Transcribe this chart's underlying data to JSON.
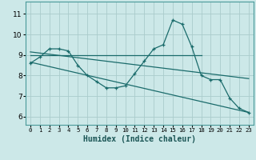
{
  "xlabel": "Humidex (Indice chaleur)",
  "bg_color": "#cce8e8",
  "line_color": "#1a6b6b",
  "grid_color": "#aacccc",
  "xlim": [
    -0.5,
    23.5
  ],
  "ylim": [
    5.6,
    11.6
  ],
  "xticks": [
    0,
    1,
    2,
    3,
    4,
    5,
    6,
    7,
    8,
    9,
    10,
    11,
    12,
    13,
    14,
    15,
    16,
    17,
    18,
    19,
    20,
    21,
    22,
    23
  ],
  "yticks": [
    6,
    7,
    8,
    9,
    10,
    11
  ],
  "flat_line": {
    "x": [
      0,
      18
    ],
    "y": [
      9.0,
      9.0
    ]
  },
  "diag_line1": {
    "x": [
      0,
      23
    ],
    "y": [
      9.15,
      7.85
    ]
  },
  "diag_line2": {
    "x": [
      0,
      23
    ],
    "y": [
      8.65,
      6.2
    ]
  },
  "main_x": [
    0,
    1,
    2,
    3,
    4,
    5,
    6,
    7,
    8,
    9,
    10,
    11,
    12,
    13,
    14,
    15,
    16,
    17,
    18,
    19,
    20,
    21,
    22,
    23
  ],
  "main_y": [
    8.6,
    8.9,
    9.3,
    9.3,
    9.2,
    8.5,
    8.0,
    7.7,
    7.4,
    7.4,
    7.5,
    8.1,
    8.7,
    9.3,
    9.5,
    10.7,
    10.5,
    9.4,
    8.0,
    7.8,
    7.8,
    6.9,
    6.4,
    6.2
  ]
}
